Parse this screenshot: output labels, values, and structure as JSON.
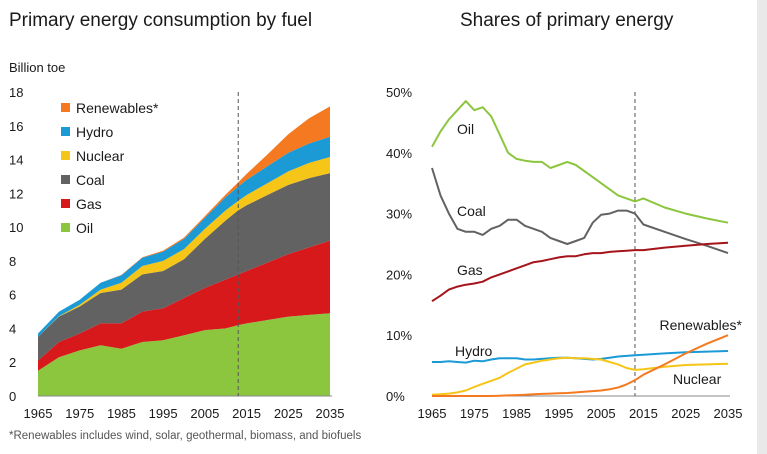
{
  "chart_data": [
    {
      "type": "area",
      "title": "Primary energy consumption by fuel",
      "ylabel": "Billion toe",
      "ylim": [
        0,
        18
      ],
      "y_ticks": [
        "0",
        "2",
        "4",
        "6",
        "8",
        "10",
        "12",
        "14",
        "16",
        "18"
      ],
      "x_ticks": [
        "1965",
        "1975",
        "1985",
        "1995",
        "2005",
        "2015",
        "2025",
        "2035"
      ],
      "xlim": [
        1965,
        2035
      ],
      "stacked": true,
      "projection_start": 2013,
      "legend_position": "top-left",
      "x": [
        1965,
        1970,
        1975,
        1980,
        1985,
        1990,
        1995,
        2000,
        2005,
        2010,
        2013,
        2015,
        2020,
        2025,
        2030,
        2035
      ],
      "series": [
        {
          "name": "Oil",
          "color": "#8cc63f",
          "values": [
            1.5,
            2.3,
            2.7,
            3.0,
            2.8,
            3.2,
            3.3,
            3.6,
            3.9,
            4.0,
            4.2,
            4.3,
            4.5,
            4.7,
            4.8,
            4.9
          ]
        },
        {
          "name": "Gas",
          "color": "#d7191c",
          "values": [
            0.6,
            0.9,
            1.0,
            1.3,
            1.5,
            1.8,
            1.9,
            2.2,
            2.5,
            2.9,
            3.0,
            3.1,
            3.4,
            3.7,
            4.0,
            4.3
          ]
        },
        {
          "name": "Coal",
          "color": "#626262",
          "values": [
            1.4,
            1.5,
            1.6,
            1.8,
            2.0,
            2.2,
            2.2,
            2.3,
            2.9,
            3.5,
            3.8,
            3.9,
            4.0,
            4.1,
            4.1,
            4.0
          ]
        },
        {
          "name": "Nuclear",
          "color": "#f5c518",
          "values": [
            0.0,
            0.02,
            0.1,
            0.2,
            0.4,
            0.5,
            0.6,
            0.6,
            0.6,
            0.6,
            0.55,
            0.6,
            0.7,
            0.8,
            0.9,
            0.95
          ]
        },
        {
          "name": "Hydro",
          "color": "#1b9ad6",
          "values": [
            0.2,
            0.27,
            0.3,
            0.4,
            0.45,
            0.48,
            0.55,
            0.6,
            0.65,
            0.78,
            0.85,
            0.9,
            1.0,
            1.1,
            1.15,
            1.2
          ]
        },
        {
          "name": "Renewables*",
          "color": "#f47920",
          "values": [
            0.0,
            0.0,
            0.0,
            0.0,
            0.02,
            0.04,
            0.06,
            0.08,
            0.1,
            0.15,
            0.25,
            0.35,
            0.7,
            1.1,
            1.5,
            1.8
          ]
        }
      ]
    },
    {
      "type": "line",
      "title": "Shares of primary energy",
      "ylim": [
        0,
        50
      ],
      "y_ticks": [
        "0%",
        "10%",
        "20%",
        "30%",
        "40%",
        "50%"
      ],
      "x_ticks": [
        "1965",
        "1975",
        "1985",
        "1995",
        "2005",
        "2015",
        "2025",
        "2035"
      ],
      "xlim": [
        1965,
        2035
      ],
      "projection_start": 2013,
      "x": [
        1965,
        1967,
        1969,
        1971,
        1973,
        1975,
        1977,
        1979,
        1981,
        1983,
        1985,
        1987,
        1989,
        1991,
        1993,
        1995,
        1997,
        1999,
        2001,
        2003,
        2005,
        2007,
        2009,
        2011,
        2013,
        2015,
        2020,
        2025,
        2030,
        2035
      ],
      "series": [
        {
          "name": "Oil",
          "color": "#8cc63f",
          "values": [
            41,
            43.5,
            45.5,
            47,
            48.5,
            47,
            47.5,
            46,
            43,
            40,
            39,
            38.7,
            38.5,
            38.5,
            37.5,
            38,
            38.5,
            38,
            37,
            36,
            35,
            34,
            33,
            32.5,
            32,
            32.5,
            31,
            30,
            29.2,
            28.5
          ]
        },
        {
          "name": "Coal",
          "color": "#626262",
          "values": [
            37.5,
            33,
            30,
            27.5,
            27,
            27,
            26.5,
            27.5,
            28,
            29,
            29,
            28,
            27.5,
            27,
            26,
            25.5,
            25,
            25.5,
            26,
            28.5,
            29.8,
            30,
            30.5,
            30.5,
            30,
            28.2,
            27,
            25.8,
            24.7,
            23.5
          ]
        },
        {
          "name": "Gas",
          "color": "#a5141b",
          "values": [
            15.6,
            16.5,
            17.5,
            18,
            18.3,
            18.5,
            18.8,
            19.5,
            20,
            20.5,
            21,
            21.5,
            22,
            22.2,
            22.5,
            22.8,
            23,
            23,
            23.3,
            23.5,
            23.5,
            23.7,
            23.8,
            23.9,
            24,
            24,
            24.4,
            24.7,
            25,
            25.2
          ]
        },
        {
          "name": "Hydro",
          "color": "#1b9ad6",
          "values": [
            5.6,
            5.6,
            5.7,
            5.6,
            5.5,
            5.8,
            5.7,
            6.0,
            6.2,
            6.2,
            6.2,
            6.0,
            6.0,
            6.1,
            6.2,
            6.3,
            6.3,
            6.2,
            6.1,
            6.0,
            6.1,
            6.3,
            6.5,
            6.6,
            6.7,
            6.8,
            7.0,
            7.2,
            7.3,
            7.4
          ]
        },
        {
          "name": "Nuclear",
          "color": "#f5c518",
          "values": [
            0.2,
            0.3,
            0.4,
            0.6,
            0.9,
            1.5,
            2.0,
            2.5,
            3.0,
            3.8,
            4.5,
            5.2,
            5.5,
            5.8,
            6.0,
            6.2,
            6.3,
            6.2,
            6.2,
            6.1,
            6.0,
            5.6,
            5.2,
            4.6,
            4.3,
            4.4,
            4.8,
            5.1,
            5.2,
            5.3
          ]
        },
        {
          "name": "Renewables*",
          "color": "#f47920",
          "values": [
            0,
            0,
            0,
            0,
            0,
            0,
            0,
            0,
            0.05,
            0.1,
            0.15,
            0.2,
            0.3,
            0.35,
            0.4,
            0.45,
            0.5,
            0.6,
            0.7,
            0.8,
            0.9,
            1.1,
            1.4,
            1.9,
            2.6,
            3.5,
            5.2,
            7.0,
            8.6,
            10.0
          ]
        }
      ]
    }
  ],
  "footnote": "*Renewables includes wind, solar, geothermal, biomass, and biofuels"
}
